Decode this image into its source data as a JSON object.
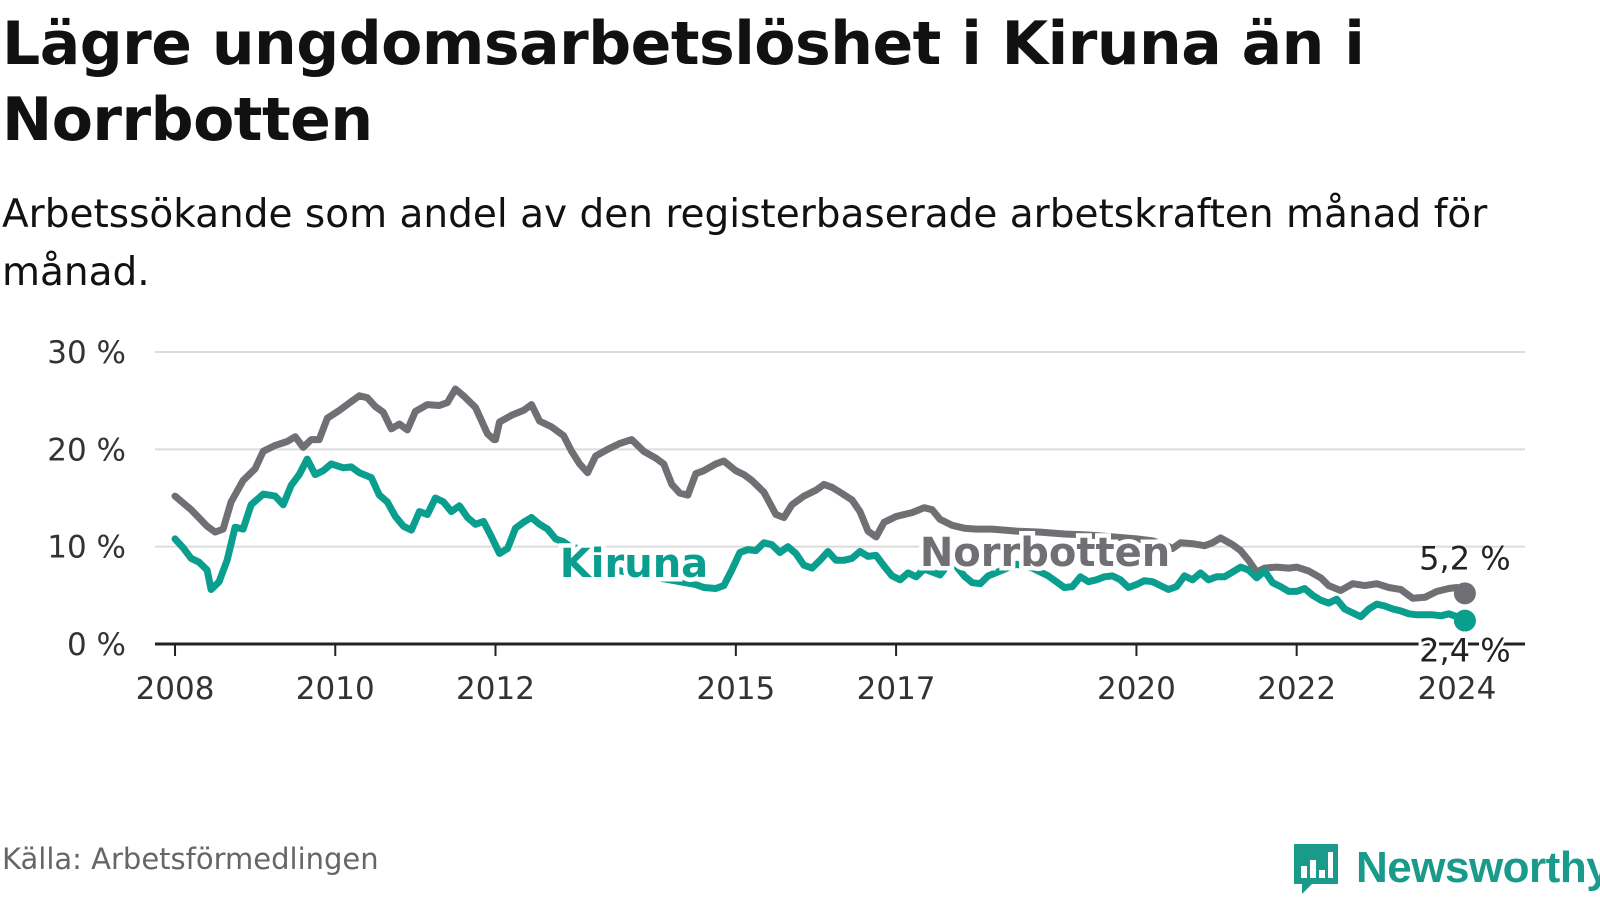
{
  "header": {
    "title": "Lägre ungdomsarbetslöshet i Kiruna än i Norrbotten",
    "subtitle": "Arbetssökande som andel av den registerbaserade arbetskraften månad för månad."
  },
  "footer": {
    "source": "Källa: Arbetsförmedlingen",
    "brand": "Newsworthy"
  },
  "colors": {
    "norrbotten": "#707074",
    "kiruna": "#0a9e8e",
    "grid": "#dcdcdc",
    "axis": "#222222",
    "brand": "#1a9a8a"
  },
  "icons": {
    "logo": "newsworthy-chart-bubble-icon"
  },
  "chart_data": {
    "type": "line",
    "title": "Lägre ungdomsarbetslöshet i Kiruna än i Norrbotten",
    "subtitle": "Arbetssökande som andel av den registerbaserade arbetskraften månad för månad.",
    "xlabel": "",
    "ylabel": "",
    "xlim": [
      2007.75,
      2024.85
    ],
    "ylim": [
      0,
      30
    ],
    "x_ticks": [
      2008,
      2010,
      2012,
      2015,
      2017,
      2020,
      2022,
      2024
    ],
    "x_tick_labels": [
      "2008",
      "2010",
      "2012",
      "2015",
      "2017",
      "2020",
      "2022",
      "2024"
    ],
    "y_ticks": [
      0,
      10,
      20,
      30
    ],
    "y_tick_labels": [
      "0 %",
      "10 %",
      "20 %",
      "30 %"
    ],
    "grid": true,
    "legend": "direct-labels",
    "series": [
      {
        "name": "Norrbotten",
        "label": "Norrbotten",
        "end_label": "5,2 %",
        "points": [
          [
            2008.0,
            15.2
          ],
          [
            2008.2,
            13.8
          ],
          [
            2008.4,
            12.1
          ],
          [
            2008.5,
            11.5
          ],
          [
            2008.6,
            11.8
          ],
          [
            2008.7,
            14.6
          ],
          [
            2008.85,
            16.8
          ],
          [
            2009.0,
            18.0
          ],
          [
            2009.1,
            19.8
          ],
          [
            2009.25,
            20.4
          ],
          [
            2009.4,
            20.8
          ],
          [
            2009.5,
            21.3
          ],
          [
            2009.6,
            20.2
          ],
          [
            2009.7,
            21.0
          ],
          [
            2009.8,
            21.0
          ],
          [
            2009.9,
            23.2
          ],
          [
            2010.05,
            24.0
          ],
          [
            2010.2,
            24.9
          ],
          [
            2010.3,
            25.5
          ],
          [
            2010.4,
            25.3
          ],
          [
            2010.5,
            24.4
          ],
          [
            2010.6,
            23.8
          ],
          [
            2010.7,
            22.1
          ],
          [
            2010.8,
            22.6
          ],
          [
            2010.9,
            22.0
          ],
          [
            2011.0,
            23.9
          ],
          [
            2011.15,
            24.6
          ],
          [
            2011.3,
            24.5
          ],
          [
            2011.4,
            24.8
          ],
          [
            2011.5,
            26.2
          ],
          [
            2011.6,
            25.5
          ],
          [
            2011.75,
            24.3
          ],
          [
            2011.9,
            21.6
          ],
          [
            2012.0,
            21.0
          ],
          [
            2011.98,
            21.0
          ],
          [
            2012.05,
            22.8
          ],
          [
            2012.2,
            23.5
          ],
          [
            2012.35,
            24.0
          ],
          [
            2012.45,
            24.6
          ],
          [
            2012.55,
            22.9
          ],
          [
            2012.7,
            22.3
          ],
          [
            2012.85,
            21.4
          ],
          [
            2012.95,
            19.8
          ],
          [
            2013.05,
            18.5
          ],
          [
            2013.15,
            17.6
          ],
          [
            2013.25,
            19.3
          ],
          [
            2013.4,
            20.0
          ],
          [
            2013.55,
            20.6
          ],
          [
            2013.7,
            21.0
          ],
          [
            2013.85,
            19.8
          ],
          [
            2014.0,
            19.1
          ],
          [
            2014.1,
            18.5
          ],
          [
            2014.2,
            16.4
          ],
          [
            2014.3,
            15.5
          ],
          [
            2014.4,
            15.3
          ],
          [
            2014.5,
            17.5
          ],
          [
            2014.6,
            17.8
          ],
          [
            2014.75,
            18.5
          ],
          [
            2014.85,
            18.8
          ],
          [
            2015.0,
            17.8
          ],
          [
            2015.1,
            17.4
          ],
          [
            2015.2,
            16.8
          ],
          [
            2015.35,
            15.6
          ],
          [
            2015.5,
            13.3
          ],
          [
            2015.6,
            13.0
          ],
          [
            2015.7,
            14.3
          ],
          [
            2015.85,
            15.2
          ],
          [
            2016.0,
            15.8
          ],
          [
            2016.1,
            16.4
          ],
          [
            2016.2,
            16.1
          ],
          [
            2016.3,
            15.6
          ],
          [
            2016.45,
            14.8
          ],
          [
            2016.55,
            13.6
          ],
          [
            2016.65,
            11.6
          ],
          [
            2016.75,
            11.0
          ],
          [
            2016.85,
            12.5
          ],
          [
            2017.0,
            13.1
          ],
          [
            2017.1,
            13.3
          ],
          [
            2017.2,
            13.5
          ],
          [
            2017.35,
            14.0
          ],
          [
            2017.45,
            13.8
          ],
          [
            2017.55,
            12.8
          ],
          [
            2017.7,
            12.2
          ],
          [
            2017.85,
            11.9
          ],
          [
            2018.0,
            11.8
          ],
          [
            2018.2,
            11.8
          ],
          [
            2018.5,
            11.6
          ],
          [
            2018.8,
            11.5
          ],
          [
            2019.1,
            11.3
          ],
          [
            2019.4,
            11.2
          ],
          [
            2019.7,
            11.0
          ],
          [
            2020.0,
            10.8
          ],
          [
            2020.2,
            10.6
          ],
          [
            2020.35,
            10.2
          ],
          [
            2020.45,
            9.8
          ],
          [
            2020.55,
            10.4
          ],
          [
            2020.7,
            10.3
          ],
          [
            2020.85,
            10.1
          ],
          [
            2020.95,
            10.4
          ],
          [
            2021.05,
            10.9
          ],
          [
            2021.2,
            10.2
          ],
          [
            2021.3,
            9.6
          ],
          [
            2021.4,
            8.6
          ],
          [
            2021.5,
            7.4
          ],
          [
            2021.6,
            7.8
          ],
          [
            2021.75,
            7.9
          ],
          [
            2021.9,
            7.8
          ],
          [
            2022.0,
            7.9
          ],
          [
            2022.15,
            7.5
          ],
          [
            2022.3,
            6.8
          ],
          [
            2022.4,
            6.0
          ],
          [
            2022.55,
            5.5
          ],
          [
            2022.7,
            6.2
          ],
          [
            2022.85,
            6.0
          ],
          [
            2023.0,
            6.2
          ],
          [
            2023.15,
            5.8
          ],
          [
            2023.3,
            5.6
          ],
          [
            2023.45,
            4.7
          ],
          [
            2023.6,
            4.8
          ],
          [
            2023.75,
            5.4
          ],
          [
            2023.9,
            5.7
          ],
          [
            2024.0,
            5.8
          ],
          [
            2024.1,
            5.2
          ]
        ]
      },
      {
        "name": "Kiruna",
        "label": "Kiruna",
        "end_label": "2,4 %",
        "points": [
          [
            2008.0,
            10.8
          ],
          [
            2008.1,
            9.9
          ],
          [
            2008.2,
            8.8
          ],
          [
            2008.3,
            8.4
          ],
          [
            2008.4,
            7.6
          ],
          [
            2008.45,
            5.6
          ],
          [
            2008.55,
            6.4
          ],
          [
            2008.65,
            8.6
          ],
          [
            2008.75,
            12.0
          ],
          [
            2008.85,
            11.8
          ],
          [
            2008.95,
            14.3
          ],
          [
            2009.1,
            15.4
          ],
          [
            2009.25,
            15.2
          ],
          [
            2009.35,
            14.3
          ],
          [
            2009.45,
            16.3
          ],
          [
            2009.55,
            17.4
          ],
          [
            2009.65,
            19.0
          ],
          [
            2009.75,
            17.4
          ],
          [
            2009.85,
            17.8
          ],
          [
            2009.95,
            18.5
          ],
          [
            2010.1,
            18.1
          ],
          [
            2010.2,
            18.2
          ],
          [
            2010.3,
            17.6
          ],
          [
            2010.45,
            17.1
          ],
          [
            2010.55,
            15.3
          ],
          [
            2010.65,
            14.6
          ],
          [
            2010.75,
            13.1
          ],
          [
            2010.85,
            12.1
          ],
          [
            2010.95,
            11.7
          ],
          [
            2011.05,
            13.6
          ],
          [
            2011.15,
            13.3
          ],
          [
            2011.25,
            15.0
          ],
          [
            2011.35,
            14.6
          ],
          [
            2011.45,
            13.6
          ],
          [
            2011.55,
            14.2
          ],
          [
            2011.65,
            13.0
          ],
          [
            2011.75,
            12.3
          ],
          [
            2011.85,
            12.6
          ],
          [
            2011.95,
            11.0
          ],
          [
            2012.05,
            9.3
          ],
          [
            2012.15,
            9.8
          ],
          [
            2012.25,
            11.9
          ],
          [
            2012.35,
            12.5
          ],
          [
            2012.45,
            13.0
          ],
          [
            2012.55,
            12.3
          ],
          [
            2012.65,
            11.8
          ],
          [
            2012.75,
            10.8
          ],
          [
            2012.85,
            10.5
          ],
          [
            2012.95,
            9.9
          ],
          [
            2013.05,
            9.8
          ],
          [
            2013.2,
            9.4
          ],
          [
            2013.35,
            8.4
          ],
          [
            2013.5,
            7.6
          ],
          [
            2013.7,
            7.3
          ],
          [
            2013.9,
            7.0
          ],
          [
            2014.1,
            6.7
          ],
          [
            2014.3,
            6.4
          ],
          [
            2014.5,
            6.1
          ],
          [
            2014.6,
            5.8
          ],
          [
            2014.75,
            5.7
          ],
          [
            2014.85,
            6.0
          ],
          [
            2014.95,
            7.6
          ],
          [
            2015.05,
            9.4
          ],
          [
            2015.15,
            9.7
          ],
          [
            2015.25,
            9.6
          ],
          [
            2015.35,
            10.4
          ],
          [
            2015.45,
            10.2
          ],
          [
            2015.55,
            9.4
          ],
          [
            2015.65,
            10.0
          ],
          [
            2015.75,
            9.3
          ],
          [
            2015.85,
            8.1
          ],
          [
            2015.95,
            7.8
          ],
          [
            2016.05,
            8.6
          ],
          [
            2016.15,
            9.5
          ],
          [
            2016.25,
            8.6
          ],
          [
            2016.35,
            8.6
          ],
          [
            2016.45,
            8.8
          ],
          [
            2016.55,
            9.5
          ],
          [
            2016.65,
            9.0
          ],
          [
            2016.75,
            9.1
          ],
          [
            2016.85,
            8.0
          ],
          [
            2016.95,
            7.0
          ],
          [
            2017.05,
            6.6
          ],
          [
            2017.15,
            7.3
          ],
          [
            2017.25,
            6.9
          ],
          [
            2017.35,
            7.7
          ],
          [
            2017.45,
            7.4
          ],
          [
            2017.55,
            7.1
          ],
          [
            2017.65,
            8.2
          ],
          [
            2017.75,
            8.0
          ],
          [
            2017.85,
            7.0
          ],
          [
            2017.95,
            6.3
          ],
          [
            2018.05,
            6.2
          ],
          [
            2018.15,
            7.0
          ],
          [
            2018.3,
            7.5
          ],
          [
            2018.5,
            8.2
          ],
          [
            2018.7,
            7.8
          ],
          [
            2018.9,
            7.0
          ],
          [
            2019.0,
            6.4
          ],
          [
            2019.1,
            5.8
          ],
          [
            2019.2,
            5.9
          ],
          [
            2019.3,
            6.9
          ],
          [
            2019.4,
            6.4
          ],
          [
            2019.5,
            6.6
          ],
          [
            2019.6,
            6.9
          ],
          [
            2019.7,
            7.0
          ],
          [
            2019.8,
            6.6
          ],
          [
            2019.9,
            5.8
          ],
          [
            2020.0,
            6.1
          ],
          [
            2020.1,
            6.5
          ],
          [
            2020.2,
            6.4
          ],
          [
            2020.3,
            6.0
          ],
          [
            2020.4,
            5.6
          ],
          [
            2020.5,
            5.9
          ],
          [
            2020.6,
            7.0
          ],
          [
            2020.7,
            6.6
          ],
          [
            2020.8,
            7.3
          ],
          [
            2020.9,
            6.6
          ],
          [
            2021.0,
            6.9
          ],
          [
            2021.1,
            6.9
          ],
          [
            2021.2,
            7.4
          ],
          [
            2021.3,
            7.9
          ],
          [
            2021.4,
            7.6
          ],
          [
            2021.5,
            6.8
          ],
          [
            2021.6,
            7.5
          ],
          [
            2021.7,
            6.3
          ],
          [
            2021.8,
            5.9
          ],
          [
            2021.9,
            5.4
          ],
          [
            2022.0,
            5.4
          ],
          [
            2022.1,
            5.7
          ],
          [
            2022.2,
            5.0
          ],
          [
            2022.3,
            4.5
          ],
          [
            2022.4,
            4.2
          ],
          [
            2022.5,
            4.6
          ],
          [
            2022.6,
            3.6
          ],
          [
            2022.7,
            3.2
          ],
          [
            2022.8,
            2.8
          ],
          [
            2022.9,
            3.6
          ],
          [
            2023.0,
            4.1
          ],
          [
            2023.1,
            3.9
          ],
          [
            2023.2,
            3.6
          ],
          [
            2023.3,
            3.4
          ],
          [
            2023.4,
            3.1
          ],
          [
            2023.5,
            3.0
          ],
          [
            2023.6,
            3.0
          ],
          [
            2023.7,
            3.0
          ],
          [
            2023.8,
            2.9
          ],
          [
            2023.9,
            3.1
          ],
          [
            2024.0,
            2.8
          ],
          [
            2024.1,
            2.4
          ]
        ]
      }
    ]
  }
}
